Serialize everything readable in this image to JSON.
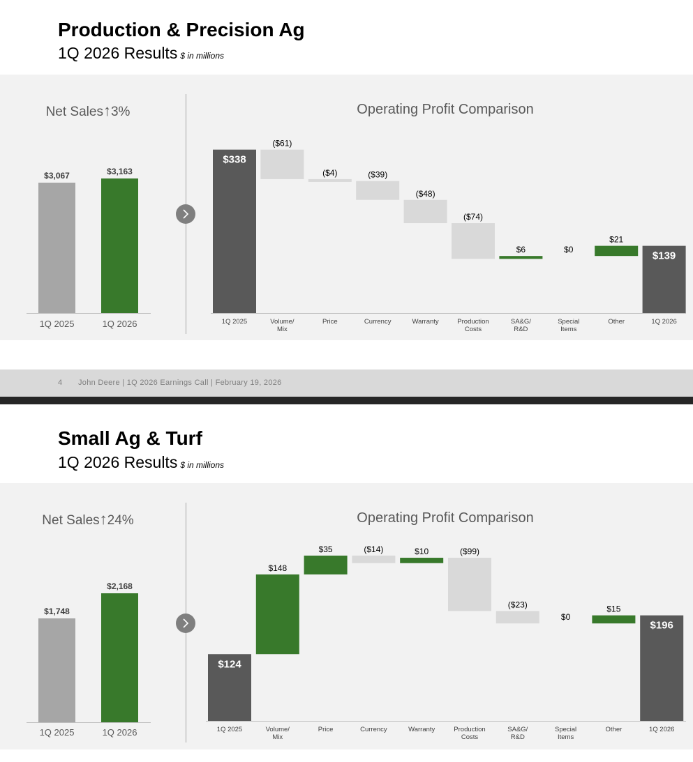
{
  "footer": {
    "page": "4",
    "text": "John Deere | 1Q 2026 Earnings Call | February 19, 2026"
  },
  "colors": {
    "prior": "#a6a6a6",
    "current": "#38792b",
    "total": "#595959",
    "negative": "#d9d9d9",
    "positive": "#38792b"
  },
  "slides": [
    {
      "title": "Production & Precision Ag",
      "subtitle": "1Q 2026 Results",
      "unit": "$ in millions",
      "net_sales": {
        "label": "Net Sales",
        "arrow": "↑",
        "change": "3%"
      },
      "op_title": "Operating Profit Comparison"
    },
    {
      "title": "Small Ag & Turf",
      "subtitle": "1Q 2026 Results",
      "unit": "$ in millions",
      "net_sales": {
        "label": "Net Sales",
        "arrow": "↑",
        "change": "24%"
      },
      "op_title": "Operating Profit Comparison"
    }
  ],
  "chart_data": [
    {
      "type": "bar",
      "title": "Net Sales",
      "categories": [
        "1Q 2025",
        "1Q 2026"
      ],
      "values": [
        3067,
        3163
      ],
      "labels": [
        "$3,067",
        "$3,163"
      ],
      "ylim": [
        0,
        3800
      ]
    },
    {
      "type": "waterfall",
      "title": "Operating Profit Comparison",
      "categories": [
        "1Q 2025",
        "Volume/\nMix",
        "Price",
        "Currency",
        "Warranty",
        "Production\nCosts",
        "SA&G/\nR&D",
        "Special\nItems",
        "Other",
        "1Q 2026"
      ],
      "values": [
        338,
        -61,
        -4,
        -39,
        -48,
        -74,
        6,
        0,
        21,
        139
      ],
      "kinds": [
        "total",
        "delta",
        "delta",
        "delta",
        "delta",
        "delta",
        "delta",
        "delta",
        "delta",
        "total"
      ],
      "labels": [
        "$338",
        "($61)",
        "($4)",
        "($39)",
        "($48)",
        "($74)",
        "$6",
        "$0",
        "$21",
        "$139"
      ],
      "ylim": [
        0,
        362
      ]
    },
    {
      "type": "bar",
      "title": "Net Sales",
      "categories": [
        "1Q 2025",
        "1Q 2026"
      ],
      "values": [
        1748,
        2168
      ],
      "labels": [
        "$1,748",
        "$2,168"
      ],
      "ylim": [
        0,
        2700
      ]
    },
    {
      "type": "waterfall",
      "title": "Operating Profit Comparison",
      "categories": [
        "1Q 2025",
        "Volume/\nMix",
        "Price",
        "Currency",
        "Warranty",
        "Production\nCosts",
        "SA&G/\nR&D",
        "Special\nItems",
        "Other",
        "1Q 2026"
      ],
      "values": [
        124,
        148,
        35,
        -14,
        10,
        -99,
        -23,
        0,
        15,
        196
      ],
      "kinds": [
        "total",
        "delta",
        "delta",
        "delta",
        "delta",
        "delta",
        "delta",
        "delta",
        "delta",
        "total"
      ],
      "labels": [
        "$124",
        "$148",
        "$35",
        "($14)",
        "$10",
        "($99)",
        "($23)",
        "$0",
        "$15",
        "$196"
      ],
      "ylim": [
        0,
        316
      ]
    }
  ]
}
